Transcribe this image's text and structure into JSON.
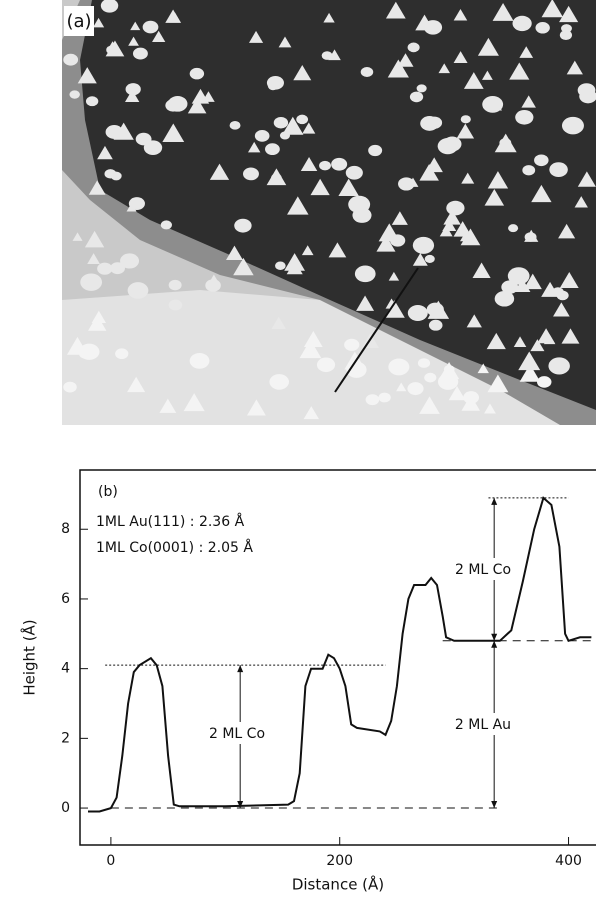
{
  "panel_a": {
    "label": "(a)"
  },
  "chart_data": {
    "type": "line",
    "panel_label": "(b)",
    "notes": [
      "1ML  Au(111) : 2.36 Å",
      "1ML  Co(0001) : 2.05 Å"
    ],
    "annotations": [
      "2 ML  Co",
      "2 ML  Au",
      "2 ML  Co"
    ],
    "xlabel": "Distance  (Å)",
    "ylabel": "Height  (Å)",
    "x": [
      -20,
      -10,
      0,
      5,
      10,
      15,
      20,
      25,
      35,
      40,
      45,
      50,
      55,
      60,
      100,
      155,
      160,
      165,
      170,
      175,
      185,
      190,
      195,
      200,
      205,
      210,
      215,
      235,
      240,
      245,
      250,
      255,
      260,
      265,
      275,
      280,
      285,
      290,
      293,
      300,
      340,
      350,
      360,
      370,
      378,
      385,
      392,
      397,
      400,
      410,
      420
    ],
    "values": [
      -0.1,
      -0.1,
      0,
      0.3,
      1.5,
      3,
      3.9,
      4.1,
      4.3,
      4.1,
      3.5,
      1.5,
      0.1,
      0.05,
      0.05,
      0.1,
      0.2,
      1,
      3.5,
      4,
      4,
      4.4,
      4.3,
      4,
      3.5,
      2.4,
      2.3,
      2.2,
      2.1,
      2.5,
      3.5,
      5,
      6,
      6.4,
      6.4,
      6.6,
      6.4,
      5.5,
      4.9,
      4.8,
      4.8,
      5.1,
      6.5,
      8,
      8.9,
      8.7,
      7.5,
      5,
      4.8,
      4.9,
      4.9
    ],
    "color": "#111",
    "xlim": [
      -27,
      424
    ],
    "ylim": [
      -1.06,
      9.7
    ],
    "xticks": [
      0,
      200,
      400
    ],
    "yticks": [
      0,
      2,
      4,
      6,
      8
    ]
  }
}
